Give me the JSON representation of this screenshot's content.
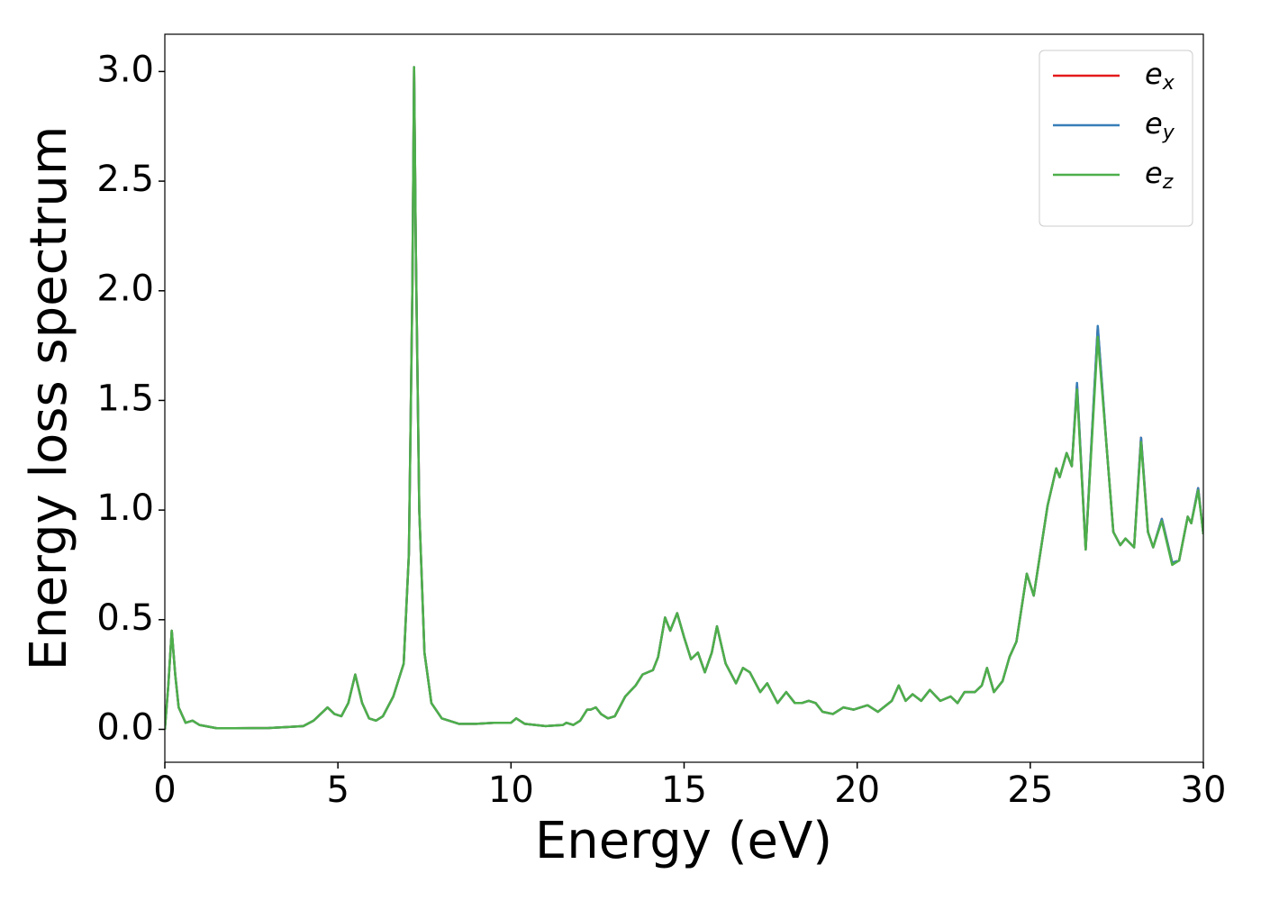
{
  "chart_data": {
    "type": "line",
    "xlabel": "Energy (eV)",
    "ylabel": "Energy loss spectrum",
    "x": [
      0,
      0.1,
      0.2,
      0.3,
      0.4,
      0.6,
      0.8,
      1,
      1.5,
      2,
      3,
      3.5,
      4,
      4.3,
      4.5,
      4.7,
      4.9,
      5.1,
      5.3,
      5.5,
      5.7,
      5.9,
      6.1,
      6.3,
      6.6,
      6.9,
      7.05,
      7.15,
      7.2,
      7.25,
      7.35,
      7.5,
      7.7,
      8,
      8.5,
      9,
      9.5,
      10,
      10.15,
      10.4,
      11,
      11.5,
      11.6,
      11.8,
      12,
      12.2,
      12.3,
      12.45,
      12.6,
      12.8,
      13,
      13.3,
      13.6,
      13.8,
      14.1,
      14.25,
      14.45,
      14.6,
      14.8,
      15,
      15.2,
      15.4,
      15.6,
      15.8,
      15.95,
      16.2,
      16.5,
      16.7,
      16.9,
      17.2,
      17.4,
      17.7,
      17.95,
      18.2,
      18.4,
      18.6,
      18.8,
      19,
      19.3,
      19.6,
      19.9,
      20.3,
      20.6,
      21,
      21.2,
      21.4,
      21.6,
      21.85,
      22.1,
      22.4,
      22.7,
      22.9,
      23.1,
      23.4,
      23.6,
      23.75,
      23.95,
      24.2,
      24.4,
      24.6,
      24.9,
      25.1,
      25.5,
      25.75,
      25.85,
      26.05,
      26.2,
      26.35,
      26.6,
      26.95,
      27.2,
      27.4,
      27.6,
      27.75,
      28,
      28.2,
      28.4,
      28.55,
      28.8,
      29.1,
      29.3,
      29.55,
      29.65,
      29.85,
      30
    ],
    "series": [
      {
        "name": "e_x",
        "color": "#e41a1c",
        "values": [
          0,
          0.2,
          0.45,
          0.25,
          0.1,
          0.03,
          0.04,
          0.02,
          0.005,
          0.005,
          0.006,
          0.01,
          0.015,
          0.04,
          0.07,
          0.1,
          0.07,
          0.06,
          0.12,
          0.25,
          0.12,
          0.05,
          0.04,
          0.06,
          0.15,
          0.3,
          0.8,
          2.0,
          3.02,
          2.2,
          1.0,
          0.35,
          0.12,
          0.05,
          0.025,
          0.025,
          0.03,
          0.03,
          0.05,
          0.025,
          0.015,
          0.02,
          0.03,
          0.02,
          0.04,
          0.09,
          0.09,
          0.1,
          0.07,
          0.05,
          0.06,
          0.15,
          0.2,
          0.25,
          0.27,
          0.33,
          0.51,
          0.45,
          0.53,
          0.42,
          0.32,
          0.35,
          0.26,
          0.35,
          0.47,
          0.3,
          0.21,
          0.28,
          0.26,
          0.17,
          0.21,
          0.12,
          0.17,
          0.12,
          0.12,
          0.13,
          0.12,
          0.08,
          0.07,
          0.1,
          0.09,
          0.11,
          0.08,
          0.13,
          0.2,
          0.13,
          0.16,
          0.13,
          0.18,
          0.13,
          0.15,
          0.12,
          0.17,
          0.17,
          0.2,
          0.28,
          0.17,
          0.22,
          0.33,
          0.4,
          0.71,
          0.61,
          1.02,
          1.19,
          1.15,
          1.26,
          1.2,
          1.57,
          0.82,
          1.83,
          1.3,
          0.9,
          0.84,
          0.87,
          0.83,
          1.33,
          0.9,
          0.83,
          0.96,
          0.76,
          0.77,
          0.97,
          0.94,
          1.1,
          0.89
        ]
      },
      {
        "name": "e_y",
        "color": "#377eb8",
        "values": [
          0,
          0.2,
          0.45,
          0.25,
          0.1,
          0.03,
          0.04,
          0.02,
          0.005,
          0.005,
          0.006,
          0.01,
          0.015,
          0.04,
          0.07,
          0.1,
          0.07,
          0.06,
          0.12,
          0.25,
          0.12,
          0.05,
          0.04,
          0.06,
          0.15,
          0.3,
          0.8,
          2.0,
          3.02,
          2.2,
          1.0,
          0.35,
          0.12,
          0.05,
          0.025,
          0.025,
          0.03,
          0.03,
          0.05,
          0.025,
          0.015,
          0.02,
          0.03,
          0.02,
          0.04,
          0.09,
          0.09,
          0.1,
          0.07,
          0.05,
          0.06,
          0.15,
          0.2,
          0.25,
          0.27,
          0.33,
          0.51,
          0.45,
          0.53,
          0.42,
          0.32,
          0.35,
          0.26,
          0.35,
          0.47,
          0.3,
          0.21,
          0.28,
          0.26,
          0.17,
          0.21,
          0.12,
          0.17,
          0.12,
          0.12,
          0.13,
          0.12,
          0.08,
          0.07,
          0.1,
          0.09,
          0.11,
          0.08,
          0.13,
          0.2,
          0.13,
          0.16,
          0.13,
          0.18,
          0.13,
          0.15,
          0.12,
          0.17,
          0.17,
          0.2,
          0.28,
          0.17,
          0.22,
          0.33,
          0.4,
          0.71,
          0.61,
          1.02,
          1.19,
          1.15,
          1.26,
          1.2,
          1.58,
          0.82,
          1.84,
          1.3,
          0.9,
          0.84,
          0.87,
          0.83,
          1.33,
          0.9,
          0.83,
          0.96,
          0.76,
          0.77,
          0.97,
          0.94,
          1.1,
          0.89
        ]
      },
      {
        "name": "e_z",
        "color": "#4daf4a",
        "values": [
          0,
          0.2,
          0.45,
          0.25,
          0.1,
          0.03,
          0.04,
          0.02,
          0.005,
          0.005,
          0.006,
          0.01,
          0.015,
          0.04,
          0.07,
          0.1,
          0.07,
          0.06,
          0.12,
          0.25,
          0.12,
          0.05,
          0.04,
          0.06,
          0.15,
          0.3,
          0.8,
          2.0,
          3.02,
          2.2,
          1.0,
          0.35,
          0.12,
          0.05,
          0.025,
          0.025,
          0.03,
          0.03,
          0.05,
          0.025,
          0.015,
          0.02,
          0.03,
          0.02,
          0.04,
          0.09,
          0.09,
          0.1,
          0.07,
          0.05,
          0.06,
          0.15,
          0.2,
          0.25,
          0.27,
          0.33,
          0.51,
          0.45,
          0.53,
          0.42,
          0.32,
          0.35,
          0.26,
          0.35,
          0.47,
          0.3,
          0.21,
          0.28,
          0.26,
          0.17,
          0.21,
          0.12,
          0.17,
          0.12,
          0.12,
          0.13,
          0.12,
          0.08,
          0.07,
          0.1,
          0.09,
          0.11,
          0.08,
          0.13,
          0.2,
          0.13,
          0.16,
          0.13,
          0.18,
          0.13,
          0.15,
          0.12,
          0.17,
          0.17,
          0.2,
          0.28,
          0.17,
          0.22,
          0.33,
          0.4,
          0.71,
          0.61,
          1.02,
          1.19,
          1.15,
          1.26,
          1.2,
          1.55,
          0.82,
          1.79,
          1.3,
          0.9,
          0.84,
          0.87,
          0.83,
          1.31,
          0.9,
          0.83,
          0.95,
          0.75,
          0.77,
          0.97,
          0.94,
          1.09,
          0.89
        ]
      }
    ],
    "xlim": [
      0,
      30
    ],
    "xticks": [
      0,
      5,
      10,
      15,
      20,
      25,
      30
    ],
    "ylim": [
      -0.15,
      3.17
    ],
    "yticks": [
      {
        "value": 0,
        "label": "0.0"
      },
      0.5,
      {
        "value": 1,
        "label": "1.0"
      },
      1.5,
      {
        "value": 2,
        "label": "2.0"
      },
      2.5,
      {
        "value": 3,
        "label": "3.0"
      }
    ],
    "grid": false,
    "legend": "upper right"
  }
}
